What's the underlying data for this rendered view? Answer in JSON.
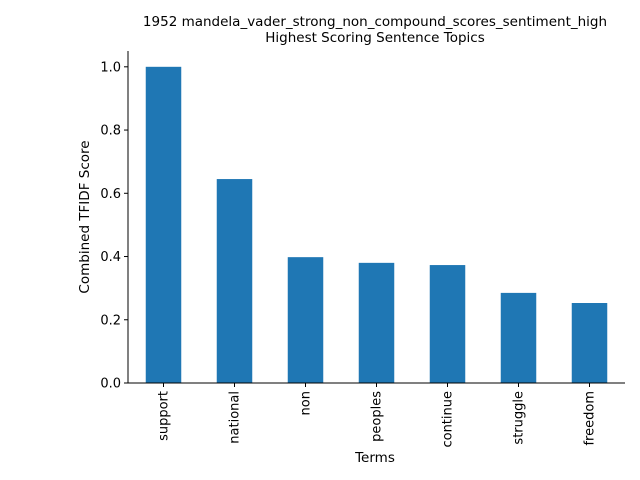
{
  "chart_data": {
    "type": "bar",
    "title": "1952 mandela_vader_strong_non_compound_scores_sentiment_high",
    "subtitle": "Highest Scoring Sentence Topics",
    "xlabel": "Terms",
    "ylabel": "Combined TFIDF Score",
    "categories": [
      "support",
      "national",
      "non",
      "peoples",
      "continue",
      "struggle",
      "freedom"
    ],
    "values": [
      1.0,
      0.645,
      0.398,
      0.38,
      0.373,
      0.285,
      0.253
    ],
    "ylim": [
      0,
      1.05
    ],
    "yticks": [
      "0.0",
      "0.2",
      "0.4",
      "0.6",
      "0.8",
      "1.0"
    ],
    "grid": false,
    "bar_color": "#1f77b4"
  }
}
